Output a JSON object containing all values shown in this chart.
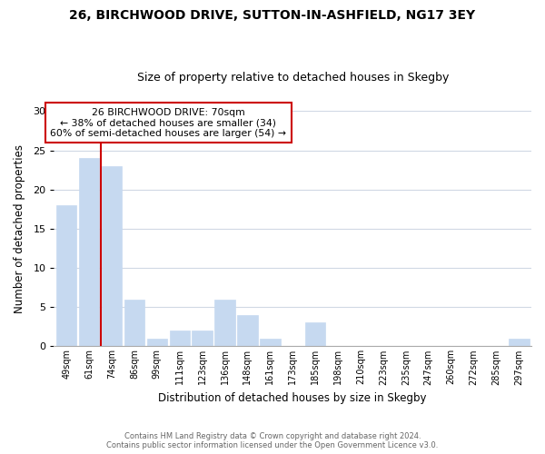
{
  "title": "26, BIRCHWOOD DRIVE, SUTTON-IN-ASHFIELD, NG17 3EY",
  "subtitle": "Size of property relative to detached houses in Skegby",
  "xlabel": "Distribution of detached houses by size in Skegby",
  "ylabel": "Number of detached properties",
  "bar_labels": [
    "49sqm",
    "61sqm",
    "74sqm",
    "86sqm",
    "99sqm",
    "111sqm",
    "123sqm",
    "136sqm",
    "148sqm",
    "161sqm",
    "173sqm",
    "185sqm",
    "198sqm",
    "210sqm",
    "223sqm",
    "235sqm",
    "247sqm",
    "260sqm",
    "272sqm",
    "285sqm",
    "297sqm"
  ],
  "bar_values": [
    18,
    24,
    23,
    6,
    1,
    2,
    2,
    6,
    4,
    1,
    0,
    3,
    0,
    0,
    0,
    0,
    0,
    0,
    0,
    0,
    1
  ],
  "bar_color": "#c6d9f0",
  "bar_edge_color": "#c6d9f0",
  "reference_line_color": "#cc0000",
  "ylim": [
    0,
    30
  ],
  "yticks": [
    0,
    5,
    10,
    15,
    20,
    25,
    30
  ],
  "annotation_line1": "26 BIRCHWOOD DRIVE: 70sqm",
  "annotation_line2": "← 38% of detached houses are smaller (34)",
  "annotation_line3": "60% of semi-detached houses are larger (54) →",
  "annotation_box_color": "#ffffff",
  "annotation_box_edge_color": "#cc0000",
  "footer_line1": "Contains HM Land Registry data © Crown copyright and database right 2024.",
  "footer_line2": "Contains public sector information licensed under the Open Government Licence v3.0.",
  "background_color": "#ffffff",
  "grid_color": "#d0d8e4"
}
